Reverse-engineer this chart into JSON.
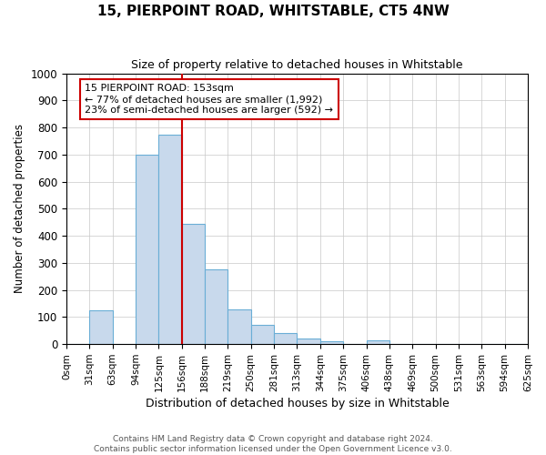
{
  "title": "15, PIERPOINT ROAD, WHITSTABLE, CT5 4NW",
  "subtitle": "Size of property relative to detached houses in Whitstable",
  "xlabel": "Distribution of detached houses by size in Whitstable",
  "ylabel": "Number of detached properties",
  "bin_labels": [
    "0sqm",
    "31sqm",
    "63sqm",
    "94sqm",
    "125sqm",
    "156sqm",
    "188sqm",
    "219sqm",
    "250sqm",
    "281sqm",
    "313sqm",
    "344sqm",
    "375sqm",
    "406sqm",
    "438sqm",
    "469sqm",
    "500sqm",
    "531sqm",
    "563sqm",
    "594sqm",
    "625sqm"
  ],
  "bar_heights": [
    0,
    125,
    0,
    700,
    775,
    445,
    275,
    130,
    70,
    40,
    20,
    10,
    0,
    15,
    0,
    0,
    0,
    0,
    0,
    0
  ],
  "bar_color": "#c8d9ec",
  "bar_edge_color": "#6aaed6",
  "property_line_x": 5,
  "annotation_text": "15 PIERPOINT ROAD: 153sqm\n← 77% of detached houses are smaller (1,992)\n23% of semi-detached houses are larger (592) →",
  "annotation_box_color": "#cc0000",
  "vline_color": "#cc0000",
  "footer_text": "Contains HM Land Registry data © Crown copyright and database right 2024.\nContains public sector information licensed under the Open Government Licence v3.0.",
  "ylim": [
    0,
    1000
  ],
  "yticks": [
    0,
    100,
    200,
    300,
    400,
    500,
    600,
    700,
    800,
    900,
    1000
  ],
  "background_color": "#ffffff",
  "grid_color": "#c8c8c8"
}
